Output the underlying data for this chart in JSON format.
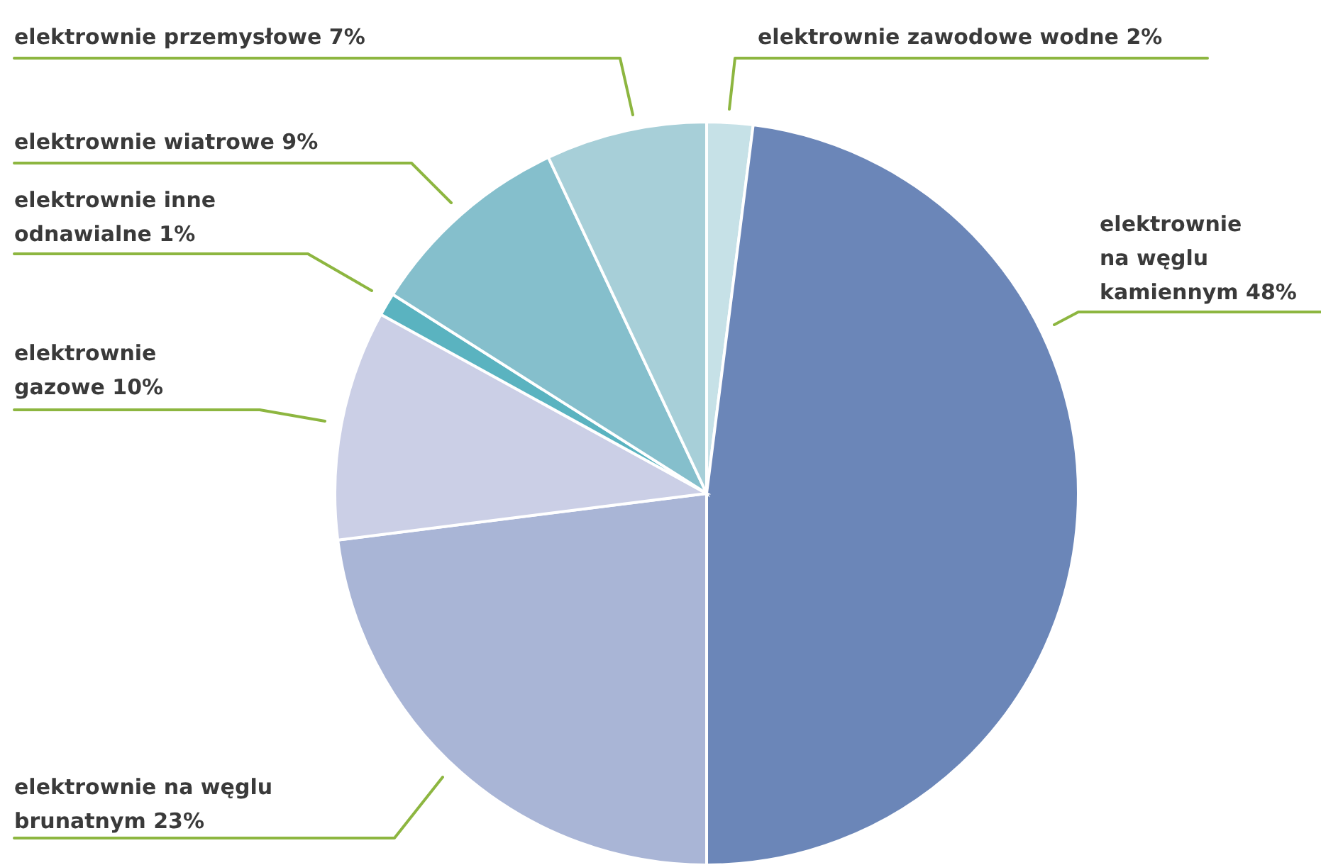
{
  "chart_data": {
    "type": "pie",
    "categories": [
      "elektrownie zawodowe wodne",
      "elektrownie\nna węglu\nkamiennym",
      "elektrownie na węglu\nbrunatnym",
      "elektrownie\ngazowe",
      "elektrownie inne\nodnawialne",
      "elektrownie wiatrowe",
      "elektrownie przemysłowe"
    ],
    "values": [
      2,
      48,
      23,
      10,
      1,
      9,
      7
    ],
    "value_labels": [
      "2%",
      "48%",
      "23%",
      "10%",
      "1%",
      "9%",
      "7%"
    ],
    "colors": [
      "#c6e1e7",
      "#6b86b8",
      "#a9b5d6",
      "#cbcfe6",
      "#5ab3c0",
      "#85bfcc",
      "#a7cfd8"
    ],
    "data_labels": true
  }
}
